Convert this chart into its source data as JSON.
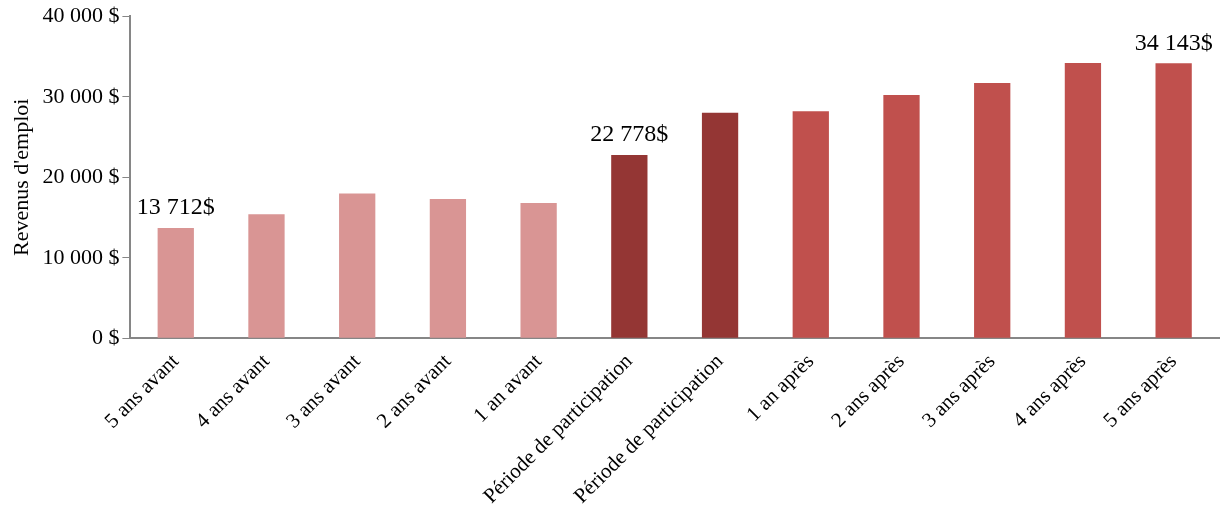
{
  "chart_data": {
    "type": "bar",
    "ylabel": "Revenus d'emploi",
    "categories": [
      "5 ans avant",
      "4 ans avant",
      "3 ans avant",
      "2 ans avant",
      "1 an avant",
      "Période de participation",
      "Période de participation",
      "1 an après",
      "2 ans après",
      "3 ans après",
      "4 ans après",
      "5 ans après"
    ],
    "values": [
      13712,
      15400,
      18000,
      17300,
      16800,
      22778,
      28000,
      28200,
      30200,
      31700,
      34200,
      34143
    ],
    "colors": [
      "#d99594",
      "#d99594",
      "#d99594",
      "#d99594",
      "#d99594",
      "#943634",
      "#943634",
      "#c0504d",
      "#c0504d",
      "#c0504d",
      "#c0504d",
      "#c0504d"
    ],
    "value_labels": [
      "13 712$",
      null,
      null,
      null,
      null,
      "22 778$",
      null,
      null,
      null,
      null,
      null,
      "34 143$"
    ],
    "ylim": [
      0,
      40000
    ],
    "yticks": [
      {
        "value": 0,
        "label": "0 $"
      },
      {
        "value": 10000,
        "label": "10 000 $"
      },
      {
        "value": 20000,
        "label": "20 000 $"
      },
      {
        "value": 30000,
        "label": "30 000 $"
      },
      {
        "value": 40000,
        "label": "40 000 $"
      }
    ],
    "grid": false,
    "legend": false
  }
}
